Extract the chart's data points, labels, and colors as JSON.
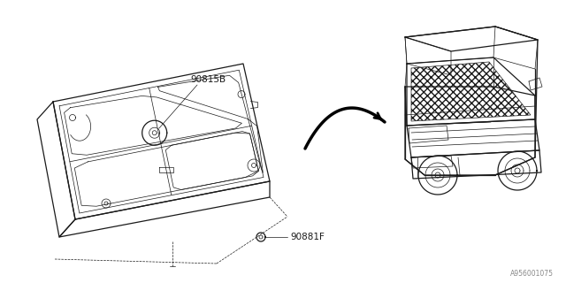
{
  "bg_color": "#ffffff",
  "line_color": "#1a1a1a",
  "part_label_1": "90815B",
  "part_label_2": "90881F",
  "diagram_id": "A956001075",
  "lw_main": 0.9,
  "lw_thin": 0.5,
  "lw_arrow": 2.2
}
